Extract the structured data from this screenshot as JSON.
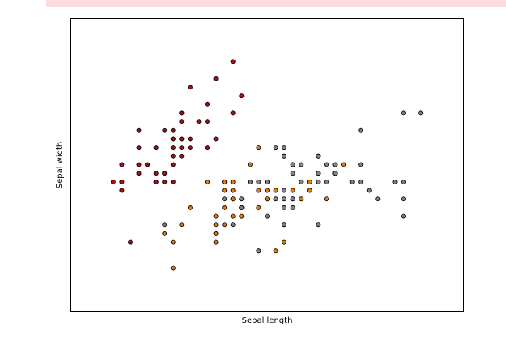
{
  "chart_data": {
    "type": "scatter",
    "title": "",
    "xlabel": "Sepal length",
    "ylabel": "Sepal width",
    "xlim": [
      3.8,
      8.4
    ],
    "ylim": [
      1.5,
      4.9
    ],
    "xticks": [],
    "yticks": [],
    "grid": false,
    "legend": "none",
    "series": [
      {
        "color": "#a50f15",
        "points": [
          [
            5.1,
            3.5
          ],
          [
            4.9,
            3.0
          ],
          [
            4.7,
            3.2
          ],
          [
            4.6,
            3.1
          ],
          [
            5.0,
            3.6
          ],
          [
            5.4,
            3.9
          ],
          [
            4.6,
            3.4
          ],
          [
            5.0,
            3.4
          ],
          [
            4.4,
            2.9
          ],
          [
            4.9,
            3.1
          ],
          [
            5.4,
            3.7
          ],
          [
            4.8,
            3.4
          ],
          [
            4.8,
            3.0
          ],
          [
            4.3,
            3.0
          ],
          [
            5.8,
            4.0
          ],
          [
            5.7,
            4.4
          ],
          [
            5.4,
            3.9
          ],
          [
            5.1,
            3.5
          ],
          [
            5.7,
            3.8
          ],
          [
            5.1,
            3.8
          ],
          [
            5.4,
            3.4
          ],
          [
            5.1,
            3.7
          ],
          [
            4.6,
            3.6
          ],
          [
            5.1,
            3.3
          ],
          [
            4.8,
            3.4
          ],
          [
            5.0,
            3.0
          ],
          [
            5.0,
            3.4
          ],
          [
            5.2,
            3.5
          ],
          [
            5.2,
            3.4
          ],
          [
            4.7,
            3.2
          ],
          [
            4.8,
            3.1
          ],
          [
            5.4,
            3.4
          ],
          [
            5.2,
            4.1
          ],
          [
            5.5,
            4.2
          ],
          [
            4.9,
            3.1
          ],
          [
            5.0,
            3.2
          ],
          [
            5.5,
            3.5
          ],
          [
            4.9,
            3.6
          ],
          [
            4.4,
            3.0
          ],
          [
            5.1,
            3.4
          ],
          [
            5.0,
            3.5
          ],
          [
            4.5,
            2.3
          ],
          [
            4.4,
            3.2
          ],
          [
            5.0,
            3.5
          ],
          [
            5.1,
            3.8
          ],
          [
            4.8,
            3.0
          ],
          [
            5.1,
            3.8
          ],
          [
            4.6,
            3.2
          ],
          [
            5.3,
            3.7
          ],
          [
            5.0,
            3.3
          ]
        ]
      },
      {
        "color": "#e07b09",
        "points": [
          [
            7.0,
            3.2
          ],
          [
            6.4,
            3.2
          ],
          [
            6.9,
            3.1
          ],
          [
            5.5,
            2.3
          ],
          [
            6.5,
            2.8
          ],
          [
            5.7,
            2.8
          ],
          [
            6.3,
            3.3
          ],
          [
            4.9,
            2.4
          ],
          [
            6.6,
            2.9
          ],
          [
            5.2,
            2.7
          ],
          [
            5.0,
            2.0
          ],
          [
            5.9,
            3.0
          ],
          [
            6.0,
            2.2
          ],
          [
            6.1,
            2.9
          ],
          [
            5.6,
            2.9
          ],
          [
            6.7,
            3.1
          ],
          [
            5.6,
            3.0
          ],
          [
            5.8,
            2.7
          ],
          [
            6.2,
            2.2
          ],
          [
            5.6,
            2.5
          ],
          [
            5.9,
            3.2
          ],
          [
            6.1,
            2.8
          ],
          [
            6.3,
            2.5
          ],
          [
            6.1,
            2.8
          ],
          [
            6.4,
            2.9
          ],
          [
            6.6,
            3.0
          ],
          [
            6.8,
            2.8
          ],
          [
            6.7,
            3.0
          ],
          [
            6.0,
            2.9
          ],
          [
            5.7,
            2.6
          ],
          [
            5.5,
            2.4
          ],
          [
            5.5,
            2.4
          ],
          [
            5.8,
            2.7
          ],
          [
            6.0,
            2.7
          ],
          [
            5.4,
            3.0
          ],
          [
            6.0,
            3.4
          ],
          [
            6.7,
            3.1
          ],
          [
            6.3,
            2.3
          ],
          [
            5.6,
            3.0
          ],
          [
            5.5,
            2.5
          ],
          [
            5.5,
            2.6
          ],
          [
            6.1,
            3.0
          ],
          [
            5.8,
            2.6
          ],
          [
            5.0,
            2.3
          ],
          [
            5.6,
            2.7
          ],
          [
            5.7,
            3.0
          ],
          [
            5.7,
            2.9
          ],
          [
            6.2,
            2.9
          ],
          [
            5.1,
            2.5
          ],
          [
            5.7,
            2.8
          ]
        ]
      },
      {
        "color": "#808080",
        "points": [
          [
            6.3,
            3.3
          ],
          [
            5.8,
            2.7
          ],
          [
            7.1,
            3.0
          ],
          [
            6.3,
            2.9
          ],
          [
            6.5,
            3.0
          ],
          [
            7.6,
            3.0
          ],
          [
            4.9,
            2.5
          ],
          [
            7.3,
            2.9
          ],
          [
            6.7,
            2.5
          ],
          [
            7.2,
            3.6
          ],
          [
            6.5,
            3.2
          ],
          [
            6.4,
            2.7
          ],
          [
            6.8,
            3.0
          ],
          [
            5.7,
            2.5
          ],
          [
            5.8,
            2.8
          ],
          [
            6.4,
            3.2
          ],
          [
            6.5,
            3.0
          ],
          [
            7.7,
            3.8
          ],
          [
            7.7,
            2.6
          ],
          [
            6.0,
            2.2
          ],
          [
            6.9,
            3.2
          ],
          [
            5.6,
            2.8
          ],
          [
            7.7,
            2.8
          ],
          [
            6.3,
            2.7
          ],
          [
            6.7,
            3.3
          ],
          [
            7.2,
            3.2
          ],
          [
            6.2,
            2.8
          ],
          [
            6.1,
            3.0
          ],
          [
            6.4,
            2.8
          ],
          [
            7.2,
            3.0
          ],
          [
            7.4,
            2.8
          ],
          [
            7.9,
            3.8
          ],
          [
            6.4,
            2.8
          ],
          [
            6.3,
            2.8
          ],
          [
            6.1,
            2.6
          ],
          [
            7.7,
            3.0
          ],
          [
            6.3,
            3.4
          ],
          [
            6.4,
            3.1
          ],
          [
            6.0,
            3.0
          ],
          [
            6.9,
            3.1
          ],
          [
            6.7,
            3.1
          ],
          [
            6.9,
            3.1
          ],
          [
            5.8,
            2.7
          ],
          [
            6.8,
            3.2
          ],
          [
            6.7,
            3.3
          ],
          [
            6.7,
            3.0
          ],
          [
            6.3,
            2.5
          ],
          [
            6.5,
            3.0
          ],
          [
            6.2,
            3.4
          ],
          [
            5.9,
            3.0
          ]
        ]
      }
    ]
  }
}
